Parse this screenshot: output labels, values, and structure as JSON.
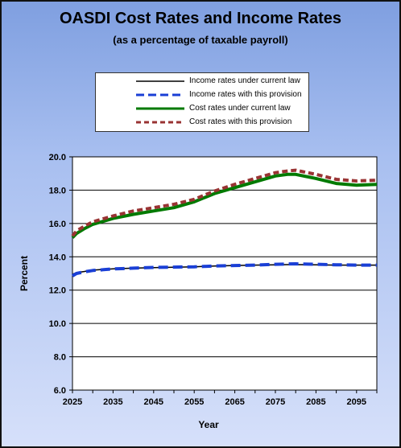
{
  "chart_data": {
    "type": "line",
    "title": "OASDI Cost Rates and Income Rates",
    "subtitle": "(as a percentage of taxable payroll)",
    "xlabel": "Year",
    "ylabel": "Percent",
    "xlim": [
      2025,
      2100
    ],
    "ylim": [
      6.0,
      20.0
    ],
    "x_ticks": [
      2025,
      2035,
      2045,
      2055,
      2065,
      2075,
      2085,
      2095
    ],
    "y_ticks": [
      "6.0",
      "8.0",
      "10.0",
      "12.0",
      "14.0",
      "16.0",
      "18.0",
      "20.0"
    ],
    "grid": true,
    "legend_position": "top-center",
    "x": [
      2025,
      2026,
      2028,
      2030,
      2035,
      2040,
      2045,
      2050,
      2055,
      2060,
      2065,
      2070,
      2075,
      2078,
      2080,
      2085,
      2090,
      2095,
      2100
    ],
    "series": [
      {
        "name": "Income rates under current law",
        "color": "#000000",
        "style": "solid",
        "values": [
          12.95,
          13.05,
          13.12,
          13.2,
          13.28,
          13.32,
          13.35,
          13.37,
          13.4,
          13.45,
          13.48,
          13.5,
          13.52,
          13.53,
          13.53,
          13.52,
          13.5,
          13.5,
          13.5
        ]
      },
      {
        "name": "Income rates with this provision",
        "color": "#1a3fd6",
        "style": "dashed",
        "values": [
          12.85,
          13.0,
          13.1,
          13.18,
          13.27,
          13.32,
          13.36,
          13.38,
          13.4,
          13.45,
          13.48,
          13.5,
          13.55,
          13.57,
          13.58,
          13.55,
          13.52,
          13.5,
          13.5
        ]
      },
      {
        "name": "Cost rates under current law",
        "color": "#007a00",
        "style": "solid",
        "values": [
          15.15,
          15.4,
          15.7,
          15.95,
          16.3,
          16.55,
          16.75,
          16.95,
          17.3,
          17.8,
          18.15,
          18.5,
          18.85,
          18.95,
          18.95,
          18.7,
          18.4,
          18.3,
          18.35
        ]
      },
      {
        "name": "Cost rates with this provision",
        "color": "#993333",
        "style": "dashed",
        "values": [
          15.25,
          15.55,
          15.85,
          16.1,
          16.45,
          16.75,
          16.95,
          17.15,
          17.45,
          17.95,
          18.35,
          18.7,
          19.05,
          19.15,
          19.2,
          18.95,
          18.65,
          18.55,
          18.6
        ]
      }
    ]
  }
}
